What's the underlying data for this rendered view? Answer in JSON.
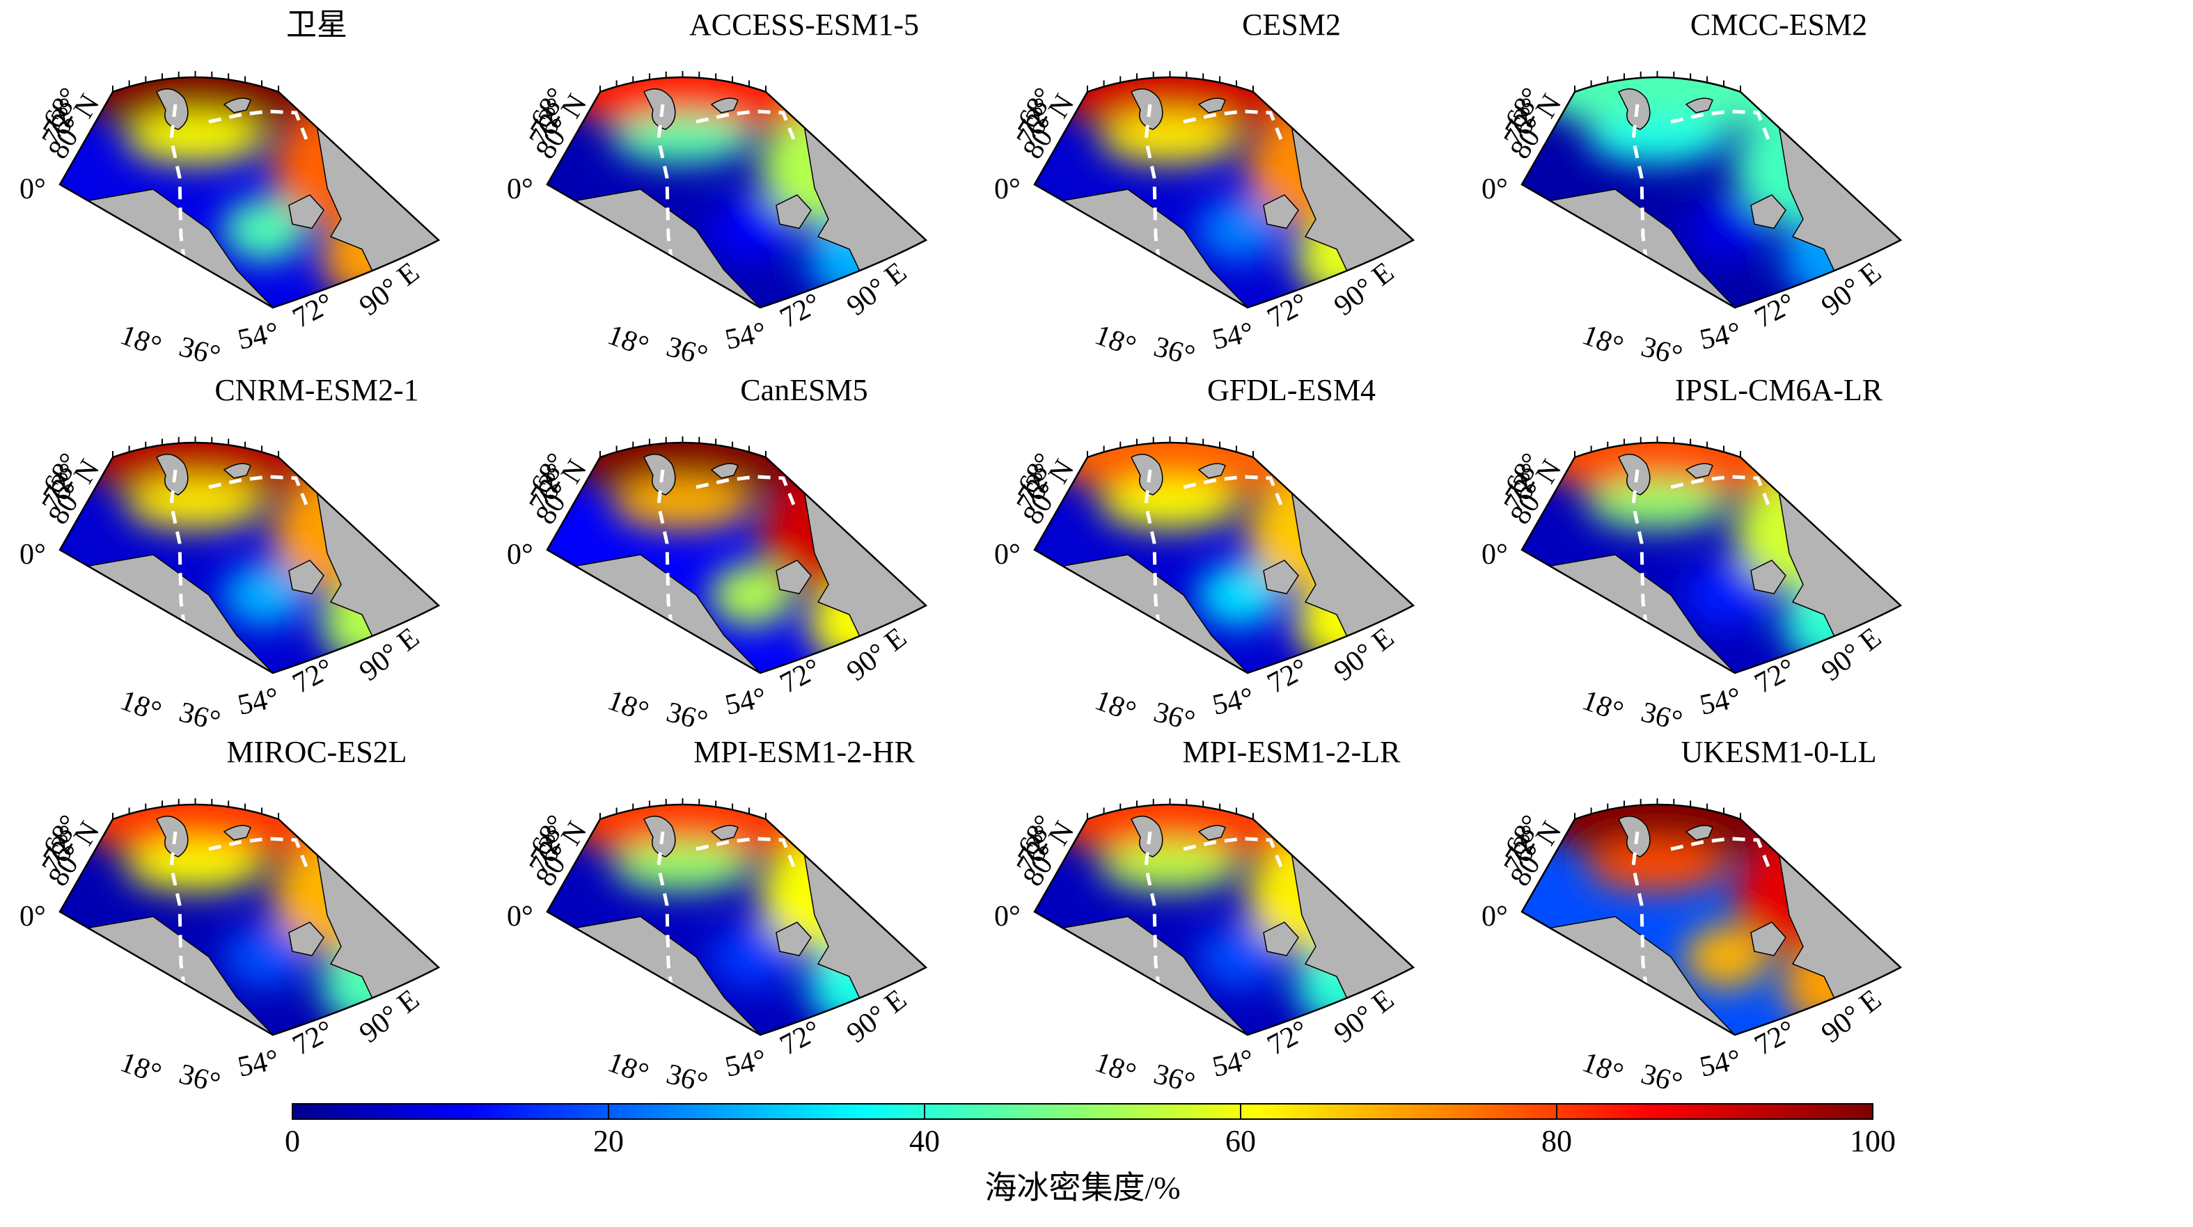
{
  "figure": {
    "panels": [
      {
        "title": "卫星",
        "ice": [
          1.0,
          0.78,
          0.62,
          0.72,
          0.45,
          0.1
        ]
      },
      {
        "title": "ACCESS-ESM1-5",
        "ice": [
          0.85,
          0.55,
          0.46,
          0.3,
          0.12,
          0.05
        ]
      },
      {
        "title": "CESM2",
        "ice": [
          0.92,
          0.74,
          0.64,
          0.6,
          0.25,
          0.08
        ]
      },
      {
        "title": "CMCC-ESM2",
        "ice": [
          0.45,
          0.44,
          0.4,
          0.28,
          0.1,
          0.04
        ]
      },
      {
        "title": "CNRM-ESM2-1",
        "ice": [
          0.95,
          0.72,
          0.64,
          0.55,
          0.3,
          0.08
        ]
      },
      {
        "title": "CanESM5",
        "ice": [
          1.0,
          0.92,
          0.7,
          0.62,
          0.55,
          0.12
        ]
      },
      {
        "title": "GFDL-ESM4",
        "ice": [
          0.78,
          0.68,
          0.62,
          0.62,
          0.35,
          0.08
        ]
      },
      {
        "title": "IPSL-CM6A-LR",
        "ice": [
          0.8,
          0.58,
          0.52,
          0.42,
          0.15,
          0.06
        ]
      },
      {
        "title": "MIROC-ES2L",
        "ice": [
          0.82,
          0.7,
          0.62,
          0.45,
          0.2,
          0.05
        ]
      },
      {
        "title": "MPI-ESM1-2-HR",
        "ice": [
          0.82,
          0.62,
          0.52,
          0.4,
          0.18,
          0.06
        ]
      },
      {
        "title": "MPI-ESM1-2-LR",
        "ice": [
          0.82,
          0.64,
          0.56,
          0.42,
          0.2,
          0.06
        ]
      },
      {
        "title": "UKESM1-0-LL",
        "ice": [
          1.0,
          0.9,
          0.8,
          0.72,
          0.7,
          0.2
        ]
      }
    ],
    "lat_labels": [
      "0°",
      "68°",
      "72°",
      "76°",
      "80° N"
    ],
    "lon_labels": [
      "18°",
      "36°",
      "54°",
      "72°",
      "90° E"
    ],
    "colors": {
      "land": "#b4b4b4",
      "boundary": "#ffffff",
      "frame": "#000000"
    }
  },
  "colorbar": {
    "ticks": [
      "0",
      "20",
      "40",
      "60",
      "80",
      "100"
    ],
    "range": [
      0,
      100
    ],
    "label": "海冰密集度/%",
    "colormap": "jet"
  }
}
